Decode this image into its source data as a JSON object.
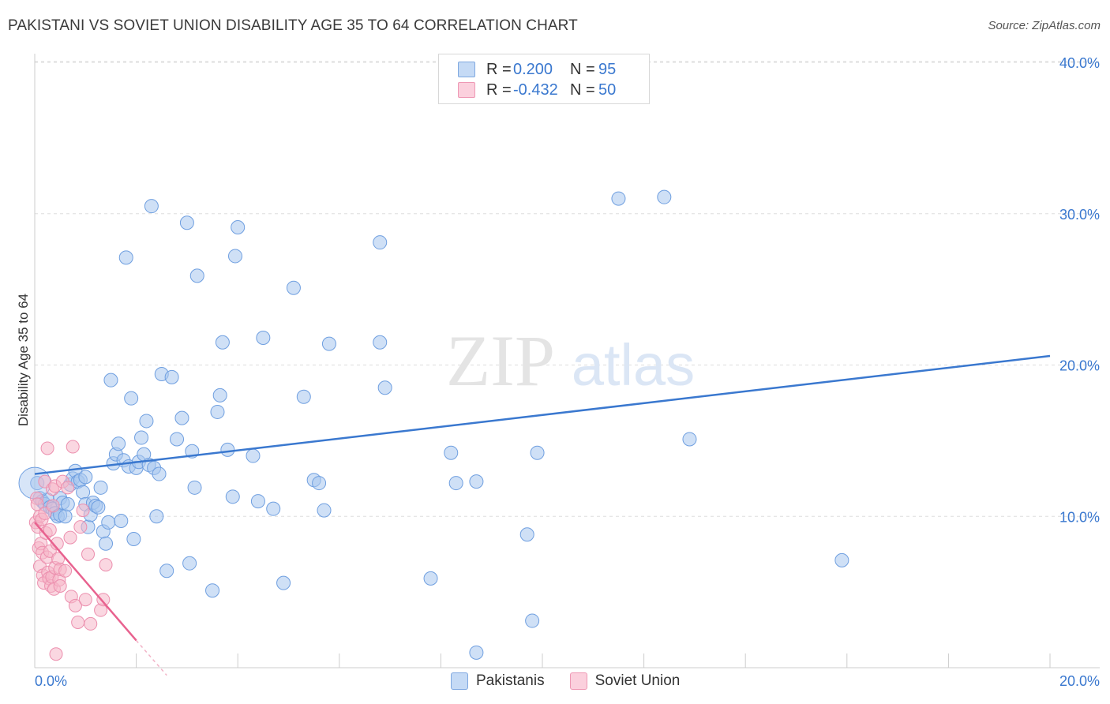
{
  "header": {
    "title": "PAKISTANI VS SOVIET UNION DISABILITY AGE 35 TO 64 CORRELATION CHART",
    "source": "Source: ZipAtlas.com"
  },
  "legend_box": {
    "rows": [
      {
        "r_label": "R =",
        "r_value": "0.200",
        "n_label": "N =",
        "n_value": "95",
        "color": "#a7c6ef"
      },
      {
        "r_label": "R =",
        "r_value": "-0.432",
        "n_label": "N =",
        "n_value": "50",
        "color": "#f6b6c9"
      }
    ]
  },
  "bottom_legend": {
    "items": [
      {
        "label": "Pakistanis",
        "color": "#a7c6ef"
      },
      {
        "label": "Soviet Union",
        "color": "#f6b6c9"
      }
    ]
  },
  "watermark": {
    "zip": "ZIP",
    "atlas": "atlas"
  },
  "colors": {
    "blue": "#3a78cf",
    "blue_fill": "#a7c6ef",
    "pink": "#e8628f",
    "pink_fill": "#f6b6c9",
    "grid": "#dddddd"
  },
  "chart_data": {
    "type": "scatter",
    "title": "PAKISTANI VS SOVIET UNION DISABILITY AGE 35 TO 64 CORRELATION CHART",
    "xlabel": "",
    "ylabel": "Disability Age 35 to 64",
    "xlim": [
      0,
      20
    ],
    "ylim": [
      0,
      40
    ],
    "x_tick_labels": [
      "0.0%",
      "20.0%"
    ],
    "y_ticks": [
      10,
      20,
      30,
      40
    ],
    "y_tick_labels": [
      "10.0%",
      "20.0%",
      "30.0%",
      "40.0%"
    ],
    "series": [
      {
        "name": "Pakistanis",
        "r": 0.2,
        "n": 95,
        "trend": {
          "x": [
            0,
            20
          ],
          "y": [
            12.8,
            20.6
          ]
        },
        "points": [
          [
            0.05,
            12.2
          ],
          [
            0.1,
            11.2
          ],
          [
            0.15,
            11.0
          ],
          [
            0.2,
            10.8
          ],
          [
            0.25,
            11.1
          ],
          [
            0.3,
            10.6
          ],
          [
            0.35,
            10.5
          ],
          [
            0.4,
            10.2
          ],
          [
            0.45,
            10.0
          ],
          [
            0.5,
            10.1
          ],
          [
            0.5,
            11.2
          ],
          [
            0.55,
            10.9
          ],
          [
            0.6,
            10.0
          ],
          [
            0.65,
            10.8
          ],
          [
            0.7,
            12.1
          ],
          [
            0.75,
            12.5
          ],
          [
            0.8,
            13.0
          ],
          [
            0.85,
            12.3
          ],
          [
            0.9,
            12.4
          ],
          [
            0.95,
            11.6
          ],
          [
            1.0,
            12.6
          ],
          [
            1.0,
            10.8
          ],
          [
            1.05,
            9.3
          ],
          [
            1.1,
            10.1
          ],
          [
            1.15,
            10.9
          ],
          [
            1.2,
            10.7
          ],
          [
            1.25,
            10.6
          ],
          [
            1.3,
            11.9
          ],
          [
            1.35,
            9.0
          ],
          [
            1.4,
            8.2
          ],
          [
            1.45,
            9.6
          ],
          [
            1.5,
            19.0
          ],
          [
            1.55,
            13.5
          ],
          [
            1.6,
            14.1
          ],
          [
            1.65,
            14.8
          ],
          [
            1.7,
            9.7
          ],
          [
            1.75,
            13.7
          ],
          [
            1.8,
            27.1
          ],
          [
            1.85,
            13.3
          ],
          [
            1.9,
            17.8
          ],
          [
            1.95,
            8.5
          ],
          [
            2.0,
            13.2
          ],
          [
            2.05,
            13.6
          ],
          [
            2.1,
            15.2
          ],
          [
            2.15,
            14.1
          ],
          [
            2.2,
            16.3
          ],
          [
            2.25,
            13.4
          ],
          [
            2.3,
            30.5
          ],
          [
            2.35,
            13.2
          ],
          [
            2.4,
            10.0
          ],
          [
            2.45,
            12.8
          ],
          [
            2.5,
            19.4
          ],
          [
            2.6,
            6.4
          ],
          [
            2.7,
            19.2
          ],
          [
            2.8,
            15.1
          ],
          [
            2.9,
            16.5
          ],
          [
            3.0,
            29.4
          ],
          [
            3.05,
            6.9
          ],
          [
            3.1,
            14.3
          ],
          [
            3.15,
            11.9
          ],
          [
            3.2,
            25.9
          ],
          [
            3.5,
            5.1
          ],
          [
            3.6,
            16.9
          ],
          [
            3.65,
            18.0
          ],
          [
            3.7,
            21.5
          ],
          [
            3.8,
            14.4
          ],
          [
            3.9,
            11.3
          ],
          [
            3.95,
            27.2
          ],
          [
            4.0,
            29.1
          ],
          [
            4.3,
            14.0
          ],
          [
            4.4,
            11.0
          ],
          [
            4.5,
            21.8
          ],
          [
            4.7,
            10.5
          ],
          [
            4.9,
            5.6
          ],
          [
            5.1,
            25.1
          ],
          [
            5.3,
            17.9
          ],
          [
            5.5,
            12.4
          ],
          [
            5.6,
            12.2
          ],
          [
            5.7,
            10.4
          ],
          [
            5.8,
            21.4
          ],
          [
            6.8,
            28.1
          ],
          [
            6.8,
            21.5
          ],
          [
            6.9,
            18.5
          ],
          [
            7.8,
            5.9
          ],
          [
            8.2,
            14.2
          ],
          [
            8.3,
            12.2
          ],
          [
            8.7,
            1.0
          ],
          [
            8.7,
            12.3
          ],
          [
            9.7,
            8.8
          ],
          [
            9.8,
            3.1
          ],
          [
            9.9,
            14.2
          ],
          [
            11.5,
            31.0
          ],
          [
            12.4,
            31.1
          ],
          [
            12.9,
            15.1
          ],
          [
            15.9,
            7.1
          ]
        ]
      },
      {
        "name": "Soviet Union",
        "r": -0.432,
        "n": 50,
        "trend": {
          "x": [
            0,
            2.0
          ],
          "y": [
            9.6,
            1.8
          ]
        },
        "trend_extension": {
          "x": [
            2.0,
            2.6
          ],
          "y": [
            1.8,
            -0.5
          ]
        },
        "points": [
          [
            0.02,
            9.6
          ],
          [
            0.04,
            11.2
          ],
          [
            0.05,
            10.8
          ],
          [
            0.06,
            9.3
          ],
          [
            0.08,
            7.9
          ],
          [
            0.1,
            6.7
          ],
          [
            0.1,
            10.0
          ],
          [
            0.12,
            8.2
          ],
          [
            0.14,
            9.8
          ],
          [
            0.15,
            7.6
          ],
          [
            0.16,
            6.1
          ],
          [
            0.18,
            5.6
          ],
          [
            0.2,
            12.3
          ],
          [
            0.2,
            10.2
          ],
          [
            0.22,
            8.9
          ],
          [
            0.24,
            7.3
          ],
          [
            0.25,
            14.5
          ],
          [
            0.26,
            6.3
          ],
          [
            0.28,
            5.9
          ],
          [
            0.3,
            9.1
          ],
          [
            0.3,
            7.7
          ],
          [
            0.32,
            5.4
          ],
          [
            0.34,
            6.0
          ],
          [
            0.35,
            11.8
          ],
          [
            0.36,
            10.7
          ],
          [
            0.38,
            5.2
          ],
          [
            0.4,
            6.6
          ],
          [
            0.4,
            12.0
          ],
          [
            0.42,
            0.9
          ],
          [
            0.44,
            8.2
          ],
          [
            0.46,
            7.2
          ],
          [
            0.48,
            5.8
          ],
          [
            0.5,
            6.5
          ],
          [
            0.5,
            5.4
          ],
          [
            0.55,
            12.3
          ],
          [
            0.6,
            6.4
          ],
          [
            0.65,
            11.9
          ],
          [
            0.7,
            8.6
          ],
          [
            0.72,
            4.7
          ],
          [
            0.75,
            14.6
          ],
          [
            0.8,
            4.1
          ],
          [
            0.85,
            3.0
          ],
          [
            0.9,
            9.3
          ],
          [
            0.95,
            10.4
          ],
          [
            1.0,
            4.5
          ],
          [
            1.05,
            7.5
          ],
          [
            1.1,
            2.9
          ],
          [
            1.3,
            3.8
          ],
          [
            1.35,
            4.5
          ],
          [
            1.4,
            6.8
          ]
        ]
      }
    ]
  }
}
